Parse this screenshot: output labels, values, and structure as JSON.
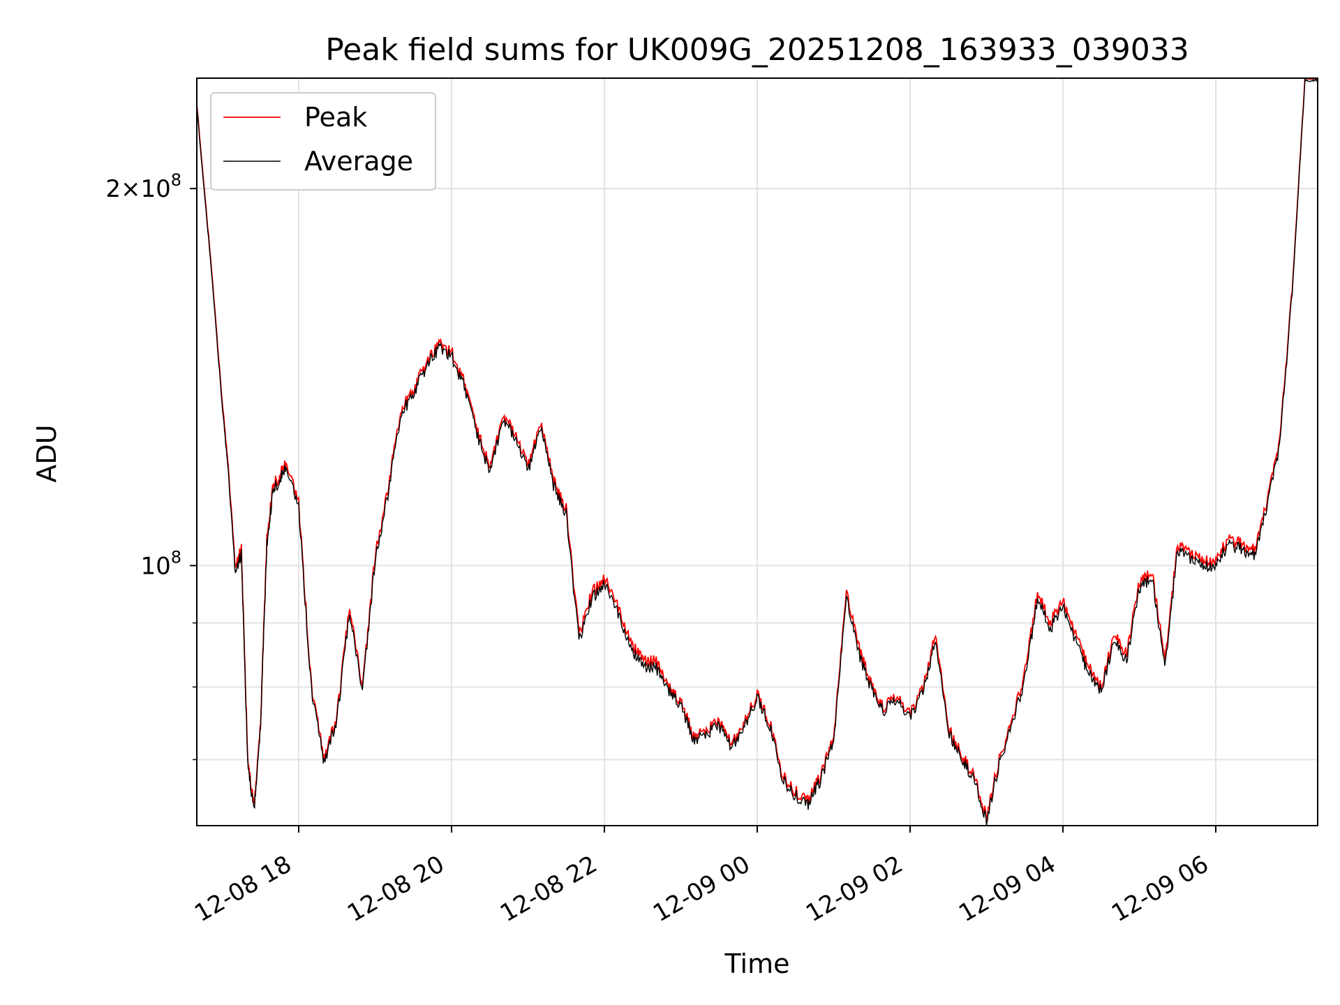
{
  "chart_data": {
    "type": "line",
    "title": "Peak field sums for UK009G_20251208_163933_039033",
    "xlabel": "Time",
    "ylabel": "ADU",
    "yscale": "log",
    "ylim": [
      62000000,
      245000000
    ],
    "xlim": [
      "2025-12-08 16:40",
      "2025-12-09 07:20"
    ],
    "x_ticks": [
      "12-08 18",
      "12-08 20",
      "12-08 22",
      "12-09 00",
      "12-09 02",
      "12-09 04",
      "12-09 06"
    ],
    "x_tick_values": [
      "2025-12-08 18:00",
      "2025-12-08 20:00",
      "2025-12-08 22:00",
      "2025-12-09 00:00",
      "2025-12-09 02:00",
      "2025-12-09 04:00",
      "2025-12-09 06:00"
    ],
    "y_major_ticks": [
      {
        "value": 100000000,
        "label": "10^8"
      },
      {
        "value": 200000000,
        "label": "2×10^8"
      }
    ],
    "y_minor_ticks": [
      70000000,
      80000000,
      90000000,
      200000000
    ],
    "grid": true,
    "legend": "top-left",
    "series": [
      {
        "name": "Peak",
        "color": "#ff0000",
        "x": [
          "2025-12-08 16:40",
          "2025-12-08 16:50",
          "2025-12-08 17:00",
          "2025-12-08 17:05",
          "2025-12-08 17:10",
          "2025-12-08 17:15",
          "2025-12-08 17:20",
          "2025-12-08 17:25",
          "2025-12-08 17:30",
          "2025-12-08 17:35",
          "2025-12-08 17:40",
          "2025-12-08 17:45",
          "2025-12-08 17:50",
          "2025-12-08 18:00",
          "2025-12-08 18:10",
          "2025-12-08 18:20",
          "2025-12-08 18:30",
          "2025-12-08 18:40",
          "2025-12-08 18:50",
          "2025-12-08 19:00",
          "2025-12-08 19:10",
          "2025-12-08 19:20",
          "2025-12-08 19:30",
          "2025-12-08 19:40",
          "2025-12-08 19:50",
          "2025-12-08 20:00",
          "2025-12-08 20:10",
          "2025-12-08 20:20",
          "2025-12-08 20:30",
          "2025-12-08 20:40",
          "2025-12-08 20:50",
          "2025-12-08 21:00",
          "2025-12-08 21:10",
          "2025-12-08 21:20",
          "2025-12-08 21:30",
          "2025-12-08 21:40",
          "2025-12-08 21:50",
          "2025-12-08 22:00",
          "2025-12-08 22:10",
          "2025-12-08 22:20",
          "2025-12-08 22:30",
          "2025-12-08 22:40",
          "2025-12-08 22:50",
          "2025-12-08 23:00",
          "2025-12-08 23:10",
          "2025-12-08 23:20",
          "2025-12-08 23:30",
          "2025-12-08 23:40",
          "2025-12-08 23:50",
          "2025-12-09 00:00",
          "2025-12-09 00:10",
          "2025-12-09 00:20",
          "2025-12-09 00:30",
          "2025-12-09 00:40",
          "2025-12-09 00:50",
          "2025-12-09 01:00",
          "2025-12-09 01:10",
          "2025-12-09 01:20",
          "2025-12-09 01:30",
          "2025-12-09 01:40",
          "2025-12-09 01:50",
          "2025-12-09 02:00",
          "2025-12-09 02:10",
          "2025-12-09 02:20",
          "2025-12-09 02:30",
          "2025-12-09 02:40",
          "2025-12-09 02:50",
          "2025-12-09 03:00",
          "2025-12-09 03:10",
          "2025-12-09 03:20",
          "2025-12-09 03:30",
          "2025-12-09 03:40",
          "2025-12-09 03:50",
          "2025-12-09 04:00",
          "2025-12-09 04:10",
          "2025-12-09 04:20",
          "2025-12-09 04:30",
          "2025-12-09 04:40",
          "2025-12-09 04:50",
          "2025-12-09 05:00",
          "2025-12-09 05:10",
          "2025-12-09 05:20",
          "2025-12-09 05:30",
          "2025-12-09 05:40",
          "2025-12-09 05:50",
          "2025-12-09 06:00",
          "2025-12-09 06:10",
          "2025-12-09 06:20",
          "2025-12-09 06:30",
          "2025-12-09 06:40",
          "2025-12-09 06:50",
          "2025-12-09 07:00",
          "2025-12-09 07:10",
          "2025-12-09 07:20"
        ],
        "y": [
          233000000,
          180000000,
          135000000,
          119000000,
          100000000,
          103000000,
          70000000,
          64000000,
          75000000,
          105000000,
          116000000,
          118000000,
          121000000,
          112000000,
          80000000,
          70000000,
          76000000,
          93000000,
          80000000,
          102000000,
          115000000,
          133000000,
          138000000,
          145000000,
          150000000,
          148000000,
          140000000,
          128000000,
          120000000,
          131000000,
          128000000,
          120000000,
          130000000,
          117000000,
          111000000,
          88000000,
          95000000,
          98000000,
          93000000,
          87000000,
          84000000,
          84000000,
          80000000,
          78000000,
          73000000,
          74000000,
          75000000,
          72000000,
          75000000,
          79000000,
          75000000,
          68000000,
          66000000,
          65000000,
          68000000,
          73000000,
          95000000,
          86000000,
          80000000,
          77000000,
          79000000,
          76000000,
          80000000,
          88000000,
          74000000,
          71000000,
          68000000,
          63000000,
          70000000,
          75000000,
          82000000,
          95000000,
          90000000,
          94000000,
          88000000,
          83000000,
          80000000,
          88000000,
          85000000,
          97000000,
          99000000,
          84000000,
          104000000,
          102000000,
          101000000,
          101000000,
          105000000,
          104000000,
          103000000,
          112000000,
          125000000,
          166000000,
          245000000,
          245000000
        ]
      },
      {
        "name": "Average",
        "color": "#000000",
        "x": [
          "2025-12-08 16:40",
          "2025-12-08 16:50",
          "2025-12-08 17:00",
          "2025-12-08 17:05",
          "2025-12-08 17:10",
          "2025-12-08 17:15",
          "2025-12-08 17:20",
          "2025-12-08 17:25",
          "2025-12-08 17:30",
          "2025-12-08 17:35",
          "2025-12-08 17:40",
          "2025-12-08 17:45",
          "2025-12-08 17:50",
          "2025-12-08 18:00",
          "2025-12-08 18:10",
          "2025-12-08 18:20",
          "2025-12-08 18:30",
          "2025-12-08 18:40",
          "2025-12-08 18:50",
          "2025-12-08 19:00",
          "2025-12-08 19:10",
          "2025-12-08 19:20",
          "2025-12-08 19:30",
          "2025-12-08 19:40",
          "2025-12-08 19:50",
          "2025-12-08 20:00",
          "2025-12-08 20:10",
          "2025-12-08 20:20",
          "2025-12-08 20:30",
          "2025-12-08 20:40",
          "2025-12-08 20:50",
          "2025-12-08 21:00",
          "2025-12-08 21:10",
          "2025-12-08 21:20",
          "2025-12-08 21:30",
          "2025-12-08 21:40",
          "2025-12-08 21:50",
          "2025-12-08 22:00",
          "2025-12-08 22:10",
          "2025-12-08 22:20",
          "2025-12-08 22:30",
          "2025-12-08 22:40",
          "2025-12-08 22:50",
          "2025-12-08 23:00",
          "2025-12-08 23:10",
          "2025-12-08 23:20",
          "2025-12-08 23:30",
          "2025-12-08 23:40",
          "2025-12-08 23:50",
          "2025-12-09 00:00",
          "2025-12-09 00:10",
          "2025-12-09 00:20",
          "2025-12-09 00:30",
          "2025-12-09 00:40",
          "2025-12-09 00:50",
          "2025-12-09 01:00",
          "2025-12-09 01:10",
          "2025-12-09 01:20",
          "2025-12-09 01:30",
          "2025-12-09 01:40",
          "2025-12-09 01:50",
          "2025-12-09 02:00",
          "2025-12-09 02:10",
          "2025-12-09 02:20",
          "2025-12-09 02:30",
          "2025-12-09 02:40",
          "2025-12-09 02:50",
          "2025-12-09 03:00",
          "2025-12-09 03:10",
          "2025-12-09 03:20",
          "2025-12-09 03:30",
          "2025-12-09 03:40",
          "2025-12-09 03:50",
          "2025-12-09 04:00",
          "2025-12-09 04:10",
          "2025-12-09 04:20",
          "2025-12-09 04:30",
          "2025-12-09 04:40",
          "2025-12-09 04:50",
          "2025-12-09 05:00",
          "2025-12-09 05:10",
          "2025-12-09 05:20",
          "2025-12-09 05:30",
          "2025-12-09 05:40",
          "2025-12-09 05:50",
          "2025-12-09 06:00",
          "2025-12-09 06:10",
          "2025-12-09 06:20",
          "2025-12-09 06:30",
          "2025-12-09 06:40",
          "2025-12-09 06:50",
          "2025-12-09 07:00",
          "2025-12-09 07:10",
          "2025-12-09 07:20"
        ],
        "y": [
          232000000,
          179000000,
          134000000,
          118000000,
          99000000,
          102000000,
          69500000,
          63500000,
          74500000,
          104000000,
          115000000,
          117000000,
          120000000,
          111000000,
          79500000,
          69500000,
          75500000,
          92000000,
          79500000,
          101000000,
          114000000,
          132000000,
          137000000,
          144000000,
          149000000,
          147000000,
          139000000,
          127000000,
          119000000,
          130000000,
          127000000,
          119000000,
          129000000,
          116000000,
          110000000,
          87000000,
          94000000,
          97000000,
          92000000,
          86000000,
          83000000,
          83000000,
          79500000,
          77500000,
          72500000,
          73500000,
          74500000,
          71500000,
          74500000,
          78500000,
          74500000,
          67500000,
          65500000,
          64500000,
          67500000,
          72500000,
          94000000,
          85000000,
          79500000,
          76500000,
          78500000,
          75500000,
          79500000,
          87000000,
          73500000,
          70500000,
          67500000,
          62500000,
          69500000,
          74500000,
          81000000,
          94000000,
          89000000,
          93000000,
          87000000,
          82000000,
          79500000,
          87000000,
          84000000,
          96000000,
          98000000,
          83000000,
          103000000,
          101000000,
          100000000,
          100000000,
          104000000,
          103000000,
          102000000,
          111000000,
          124000000,
          165000000,
          244000000,
          244000000
        ]
      }
    ]
  }
}
